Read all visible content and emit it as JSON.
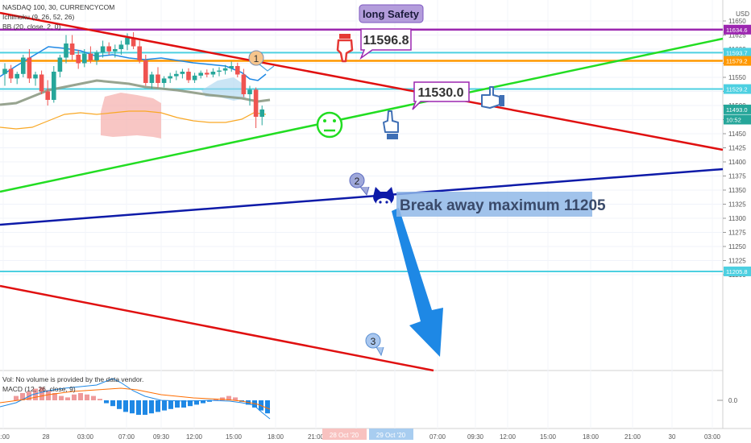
{
  "header": {
    "symbol": "NASDAQ 100, 30, CURRENCYCOM",
    "ichimoku": "Ichimoku (9, 26, 52, 26)",
    "bb": "BB (20, close, 2, 0)",
    "currency": "USD"
  },
  "volume_panel": {
    "note": "Vol: No volume is provided by the data vendor.",
    "macd": "MACD (12, 26, close, 9)",
    "zero_label": "0.0"
  },
  "annotations": {
    "long_safety": "long Safety",
    "price_a": "11596.8",
    "price_b": "11530.0",
    "break_away": "Break away maximum 11205",
    "marker_1": "1",
    "marker_2": "2",
    "marker_3": "3"
  },
  "price_tags": [
    {
      "text": "11634.6",
      "value": 11634.6,
      "color": "#9c27b0"
    },
    {
      "text": "11593.7",
      "value": 11593.7,
      "color": "#4dd0e1"
    },
    {
      "text": "11579.2",
      "value": 11579.2,
      "color": "#ff9800"
    },
    {
      "text": "11529.2",
      "value": 11529.2,
      "color": "#4dd0e1"
    },
    {
      "text": "11493.0",
      "value": 11493.0,
      "color": "#26a69a"
    },
    {
      "text": "10:52",
      "value": 11475,
      "color": "#26a69a"
    },
    {
      "text": "11205.8",
      "value": 11205.8,
      "color": "#4dd0e1"
    }
  ],
  "time_tags": [
    "28 Oct '20",
    "29 Oct '20"
  ],
  "colors": {
    "up": "#26a69a",
    "down": "#ef5350",
    "purple_line": "#9c27b0",
    "cyan_line": "#4dd0e1",
    "orange_line": "#ff9800",
    "red_trend": "#e01010",
    "green_trend": "#22dd22",
    "blue_trend": "#0d1aa8",
    "arrow": "#1e88e5"
  },
  "chart_data": {
    "type": "candlestick",
    "title": "NASDAQ 100, 30, CURRENCYCOM",
    "y_ticks": [
      11650,
      11625,
      11600,
      11575,
      11550,
      11525,
      11500,
      11475,
      11450,
      11425,
      11400,
      11375,
      11350,
      11325,
      11300,
      11275,
      11250,
      11225,
      11200
    ],
    "ylim": [
      11195,
      11672
    ],
    "x_ticks": [
      "1:00",
      "28",
      "03:00",
      "07:00",
      "09:30",
      "12:00",
      "15:00",
      "18:00",
      "21:00",
      "29",
      "03:00",
      "07:00",
      "09:30",
      "12:00",
      "15:00",
      "18:00",
      "21:00",
      "30",
      "03:00"
    ],
    "horizontal_levels": [
      11634.6,
      11593.7,
      11579.2,
      11529.2,
      11205.8
    ],
    "candles": [
      {
        "o": 11556,
        "h": 11575,
        "l": 11535,
        "c": 11565
      },
      {
        "o": 11565,
        "h": 11572,
        "l": 11540,
        "c": 11548
      },
      {
        "o": 11548,
        "h": 11560,
        "l": 11538,
        "c": 11556
      },
      {
        "o": 11556,
        "h": 11590,
        "l": 11550,
        "c": 11585
      },
      {
        "o": 11585,
        "h": 11600,
        "l": 11540,
        "c": 11548
      },
      {
        "o": 11548,
        "h": 11560,
        "l": 11535,
        "c": 11555
      },
      {
        "o": 11555,
        "h": 11562,
        "l": 11520,
        "c": 11525
      },
      {
        "o": 11525,
        "h": 11545,
        "l": 11500,
        "c": 11510
      },
      {
        "o": 11510,
        "h": 11570,
        "l": 11505,
        "c": 11560
      },
      {
        "o": 11560,
        "h": 11590,
        "l": 11550,
        "c": 11585
      },
      {
        "o": 11585,
        "h": 11625,
        "l": 11575,
        "c": 11610
      },
      {
        "o": 11610,
        "h": 11625,
        "l": 11580,
        "c": 11590
      },
      {
        "o": 11590,
        "h": 11598,
        "l": 11565,
        "c": 11575
      },
      {
        "o": 11575,
        "h": 11600,
        "l": 11568,
        "c": 11592
      },
      {
        "o": 11592,
        "h": 11605,
        "l": 11575,
        "c": 11580
      },
      {
        "o": 11580,
        "h": 11598,
        "l": 11572,
        "c": 11594
      },
      {
        "o": 11594,
        "h": 11615,
        "l": 11585,
        "c": 11605
      },
      {
        "o": 11605,
        "h": 11612,
        "l": 11590,
        "c": 11596
      },
      {
        "o": 11596,
        "h": 11608,
        "l": 11585,
        "c": 11600
      },
      {
        "o": 11600,
        "h": 11615,
        "l": 11590,
        "c": 11608
      },
      {
        "o": 11608,
        "h": 11628,
        "l": 11598,
        "c": 11620
      },
      {
        "o": 11620,
        "h": 11630,
        "l": 11600,
        "c": 11605
      },
      {
        "o": 11605,
        "h": 11615,
        "l": 11575,
        "c": 11580
      },
      {
        "o": 11580,
        "h": 11590,
        "l": 11535,
        "c": 11540
      },
      {
        "o": 11540,
        "h": 11560,
        "l": 11530,
        "c": 11555
      },
      {
        "o": 11555,
        "h": 11568,
        "l": 11532,
        "c": 11540
      },
      {
        "o": 11540,
        "h": 11552,
        "l": 11532,
        "c": 11548
      },
      {
        "o": 11548,
        "h": 11558,
        "l": 11540,
        "c": 11552
      },
      {
        "o": 11552,
        "h": 11562,
        "l": 11545,
        "c": 11556
      },
      {
        "o": 11556,
        "h": 11565,
        "l": 11548,
        "c": 11560
      },
      {
        "o": 11560,
        "h": 11566,
        "l": 11540,
        "c": 11545
      },
      {
        "o": 11545,
        "h": 11558,
        "l": 11540,
        "c": 11553
      },
      {
        "o": 11553,
        "h": 11562,
        "l": 11548,
        "c": 11558
      },
      {
        "o": 11558,
        "h": 11564,
        "l": 11550,
        "c": 11555
      },
      {
        "o": 11555,
        "h": 11566,
        "l": 11550,
        "c": 11560
      },
      {
        "o": 11560,
        "h": 11568,
        "l": 11552,
        "c": 11562
      },
      {
        "o": 11562,
        "h": 11572,
        "l": 11555,
        "c": 11566
      },
      {
        "o": 11566,
        "h": 11578,
        "l": 11560,
        "c": 11570
      },
      {
        "o": 11570,
        "h": 11576,
        "l": 11550,
        "c": 11555
      },
      {
        "o": 11555,
        "h": 11565,
        "l": 11515,
        "c": 11520
      },
      {
        "o": 11520,
        "h": 11535,
        "l": 11500,
        "c": 11528
      },
      {
        "o": 11528,
        "h": 11532,
        "l": 11460,
        "c": 11480
      },
      {
        "o": 11480,
        "h": 11500,
        "l": 11465,
        "c": 11493
      }
    ],
    "macd_hist": [
      0.3,
      0.5,
      0.6,
      0.8,
      0.9,
      0.7,
      0.5,
      0.3,
      0.2,
      0.4,
      0.5,
      0.4,
      0.3,
      0.1,
      -0.2,
      -0.4,
      -0.6,
      -0.8,
      -0.9,
      -1.0,
      -1.0,
      -0.9,
      -0.8,
      -0.7,
      -0.6,
      -0.5,
      -0.5,
      -0.4,
      -0.3,
      -0.2,
      -0.1,
      0.1,
      0.2,
      0.3,
      0.2,
      -0.1,
      -0.3,
      -0.5,
      -0.7,
      -0.9
    ]
  }
}
